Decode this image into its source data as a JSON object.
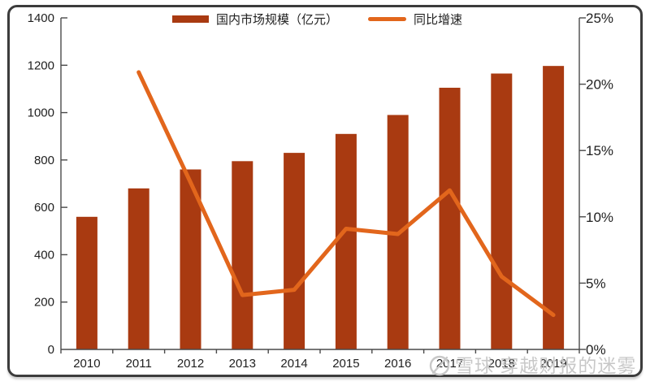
{
  "colors": {
    "bar": "#a93a11",
    "line": "#e2661c",
    "axis": "#4a4a4a",
    "text": "#1f1f1f",
    "watermark": "#c8c8c8",
    "frame_border": "#3c3c3c",
    "background": "#ffffff"
  },
  "legend": {
    "bar_label": "国内市场规模（亿元）",
    "line_label": "同比增速"
  },
  "watermark": {
    "logo": "xueqiu-snowball-icon",
    "text": "雪球 穿越财报的迷雾"
  },
  "chart_data": {
    "type": "combo",
    "categories": [
      "2010",
      "2011",
      "2012",
      "2013",
      "2014",
      "2015",
      "2016",
      "2017",
      "2018",
      "2019"
    ],
    "series": [
      {
        "name": "国内市场规模（亿元）",
        "type": "bar",
        "axis": "left",
        "color": "#a93a11",
        "values": [
          560,
          680,
          760,
          795,
          830,
          910,
          990,
          1105,
          1165,
          1197
        ]
      },
      {
        "name": "同比增速",
        "type": "line",
        "axis": "right",
        "color": "#e2661c",
        "values": [
          null,
          20.9,
          12.6,
          4.1,
          4.5,
          9.1,
          8.7,
          12.0,
          5.5,
          2.6
        ]
      }
    ],
    "left_axis": {
      "min": 0,
      "max": 1400,
      "step": 200,
      "tick_labels": [
        "0",
        "200",
        "400",
        "600",
        "800",
        "1000",
        "1200",
        "1400"
      ]
    },
    "right_axis": {
      "min": 0,
      "max": 25,
      "step": 5,
      "tick_labels": [
        "0%",
        "5%",
        "10%",
        "15%",
        "20%",
        "25%"
      ]
    },
    "grid": false,
    "legend_position": "top"
  }
}
